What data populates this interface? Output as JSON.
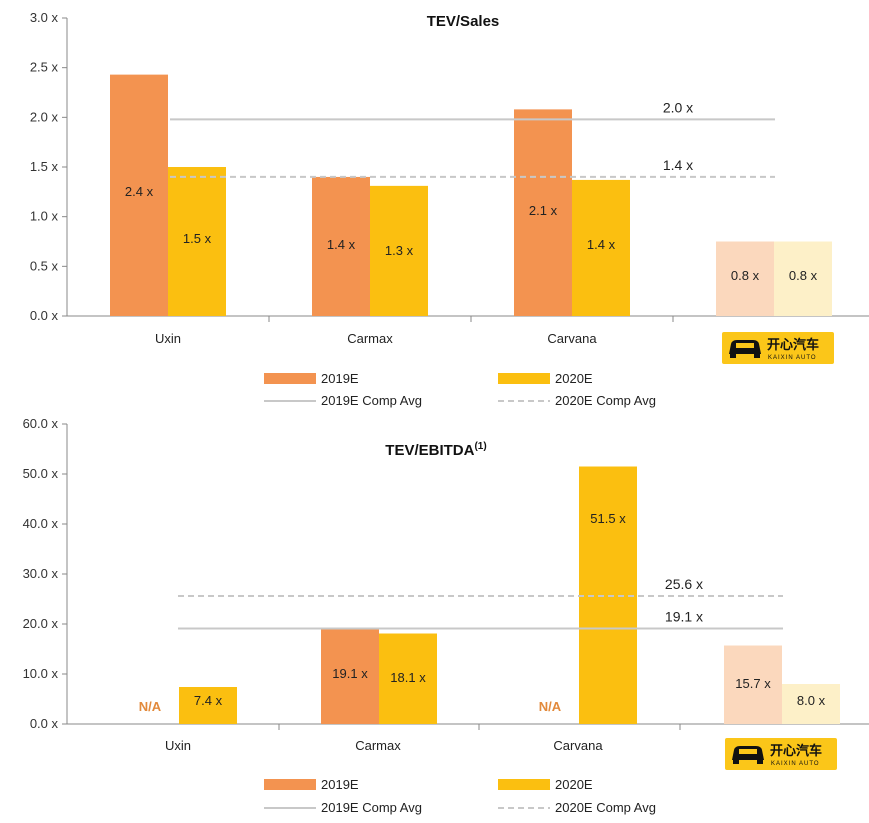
{
  "colors": {
    "s2019": "#f39350",
    "s2020": "#fbbf10",
    "kaixin2019": "#fbd8bd",
    "kaixin2020": "#fdf0c8",
    "avgLine": "#c8c8c8",
    "na": "#e28a3c",
    "axis": "#888888",
    "logoBg": "#fbc619",
    "logoText": "#111111"
  },
  "logo": {
    "cn": "开心汽车",
    "en": "KAIXIN AUTO"
  },
  "chart_data": [
    {
      "type": "bar",
      "title": "TEV/Sales",
      "title_sup": "",
      "categories": [
        "Uxin",
        "Carmax",
        "Carvana",
        ""
      ],
      "series": [
        {
          "name": "2019E",
          "values": [
            2.43,
            1.4,
            2.08,
            0.75
          ],
          "labels": [
            "2.4 x",
            "1.4 x",
            "2.1 x",
            "0.8 x"
          ]
        },
        {
          "name": "2020E",
          "values": [
            1.5,
            1.31,
            1.37,
            0.75
          ],
          "labels": [
            "1.5 x",
            "1.3 x",
            "1.4 x",
            "0.8 x"
          ]
        }
      ],
      "comp_avg": {
        "2019E": {
          "name": "2019E Comp Avg",
          "value": 1.98,
          "label": "2.0 x"
        },
        "2020E": {
          "name": "2020E Comp Avg",
          "value": 1.4,
          "label": "1.4 x"
        }
      },
      "ylim": [
        0,
        3.0
      ],
      "yticks": [
        "0.0 x",
        "0.5 x",
        "1.0 x",
        "1.5 x",
        "2.0 x",
        "2.5 x",
        "3.0 x"
      ],
      "ytick_values": [
        0,
        0.5,
        1.0,
        1.5,
        2.0,
        2.5,
        3.0
      ],
      "xlabel": "",
      "ylabel": "",
      "legend_position": "bottom",
      "grid": false
    },
    {
      "type": "bar",
      "title": "TEV/EBITDA",
      "title_sup": "(1)",
      "categories": [
        "Uxin",
        "Carmax",
        "Carvana",
        ""
      ],
      "series": [
        {
          "name": "2019E",
          "values": [
            null,
            19.1,
            null,
            15.7
          ],
          "labels": [
            "N/A",
            "19.1 x",
            "N/A",
            "15.7 x"
          ]
        },
        {
          "name": "2020E",
          "values": [
            7.4,
            18.1,
            51.5,
            8.0
          ],
          "labels": [
            "7.4 x",
            "18.1 x",
            "51.5 x",
            "8.0 x"
          ]
        }
      ],
      "comp_avg": {
        "2019E": {
          "name": "2019E Comp Avg",
          "value": 19.1,
          "label": "19.1 x"
        },
        "2020E": {
          "name": "2020E Comp Avg",
          "value": 25.6,
          "label": "25.6 x"
        }
      },
      "ylim": [
        0,
        60
      ],
      "yticks": [
        "0.0 x",
        "10.0 x",
        "20.0 x",
        "30.0 x",
        "40.0 x",
        "50.0 x",
        "60.0 x"
      ],
      "ytick_values": [
        0,
        10,
        20,
        30,
        40,
        50,
        60
      ],
      "xlabel": "",
      "ylabel": "",
      "legend_position": "bottom",
      "grid": false
    }
  ]
}
